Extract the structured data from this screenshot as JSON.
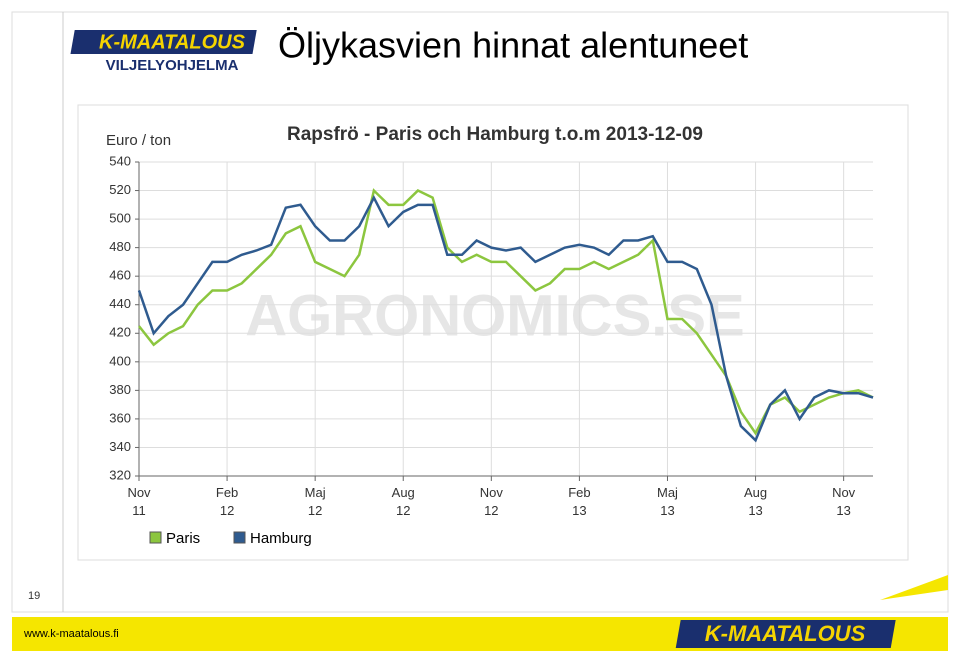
{
  "slide": {
    "title": "Öljykasvien hinnat alentuneet",
    "logo_top": "K-MAATALOUS",
    "logo_bottom": "VILJELYOHJELMA",
    "page_number": "19",
    "footer_url": "www.k-maatalous.fi",
    "footer_logo": "K-MAATALOUS"
  },
  "chart_data": {
    "type": "line",
    "title": "Rapsfrö - Paris och Hamburg t.o.m 2013-12-09",
    "y_label": "Euro / ton",
    "watermark": "AGRONOMICS.SE",
    "x": [
      0,
      0.5,
      1,
      1.5,
      2,
      2.5,
      3,
      3.5,
      4,
      4.5,
      5,
      5.5,
      6,
      6.5,
      7,
      7.5,
      8,
      8.5,
      9,
      9.5,
      10,
      10.5,
      11,
      11.5,
      12,
      12.5,
      13,
      13.5,
      14,
      14.5,
      15,
      15.5,
      16,
      16.5,
      17,
      17.5,
      18,
      18.5,
      19,
      19.5,
      20,
      20.5,
      21,
      21.5,
      22,
      22.5,
      23,
      23.5,
      24,
      24.5,
      25
    ],
    "series": [
      {
        "name": "Paris",
        "color": "#8cc63f",
        "values": [
          425,
          412,
          420,
          425,
          440,
          450,
          450,
          455,
          465,
          475,
          490,
          495,
          470,
          465,
          460,
          475,
          520,
          510,
          510,
          520,
          515,
          480,
          470,
          475,
          470,
          470,
          460,
          450,
          455,
          465,
          465,
          470,
          465,
          470,
          475,
          485,
          430,
          430,
          420,
          405,
          390,
          365,
          350,
          370,
          375,
          365,
          370,
          375,
          378,
          380,
          375
        ]
      },
      {
        "name": "Hamburg",
        "color": "#2f5b8f",
        "values": [
          450,
          420,
          432,
          440,
          455,
          470,
          470,
          475,
          478,
          482,
          508,
          510,
          495,
          485,
          485,
          495,
          515,
          495,
          505,
          510,
          510,
          475,
          475,
          485,
          480,
          478,
          480,
          470,
          475,
          480,
          482,
          480,
          475,
          485,
          485,
          488,
          470,
          470,
          465,
          440,
          390,
          355,
          345,
          370,
          380,
          360,
          375,
          380,
          378,
          378,
          375
        ]
      }
    ],
    "xlim": [
      0,
      25
    ],
    "xticks": [
      {
        "value": 0,
        "label": "Nov 11"
      },
      {
        "value": 3,
        "label": "Feb 12"
      },
      {
        "value": 6,
        "label": "Maj 12"
      },
      {
        "value": 9,
        "label": "Aug 12"
      },
      {
        "value": 12,
        "label": "Nov 12"
      },
      {
        "value": 15,
        "label": "Feb 13"
      },
      {
        "value": 18,
        "label": "Maj 13"
      },
      {
        "value": 21,
        "label": "Aug 13"
      },
      {
        "value": 24,
        "label": "Nov 13"
      }
    ],
    "ylim": [
      320,
      540
    ],
    "yticks": [
      320,
      340,
      360,
      380,
      400,
      420,
      440,
      460,
      480,
      500,
      520,
      540
    ],
    "grid": true
  }
}
